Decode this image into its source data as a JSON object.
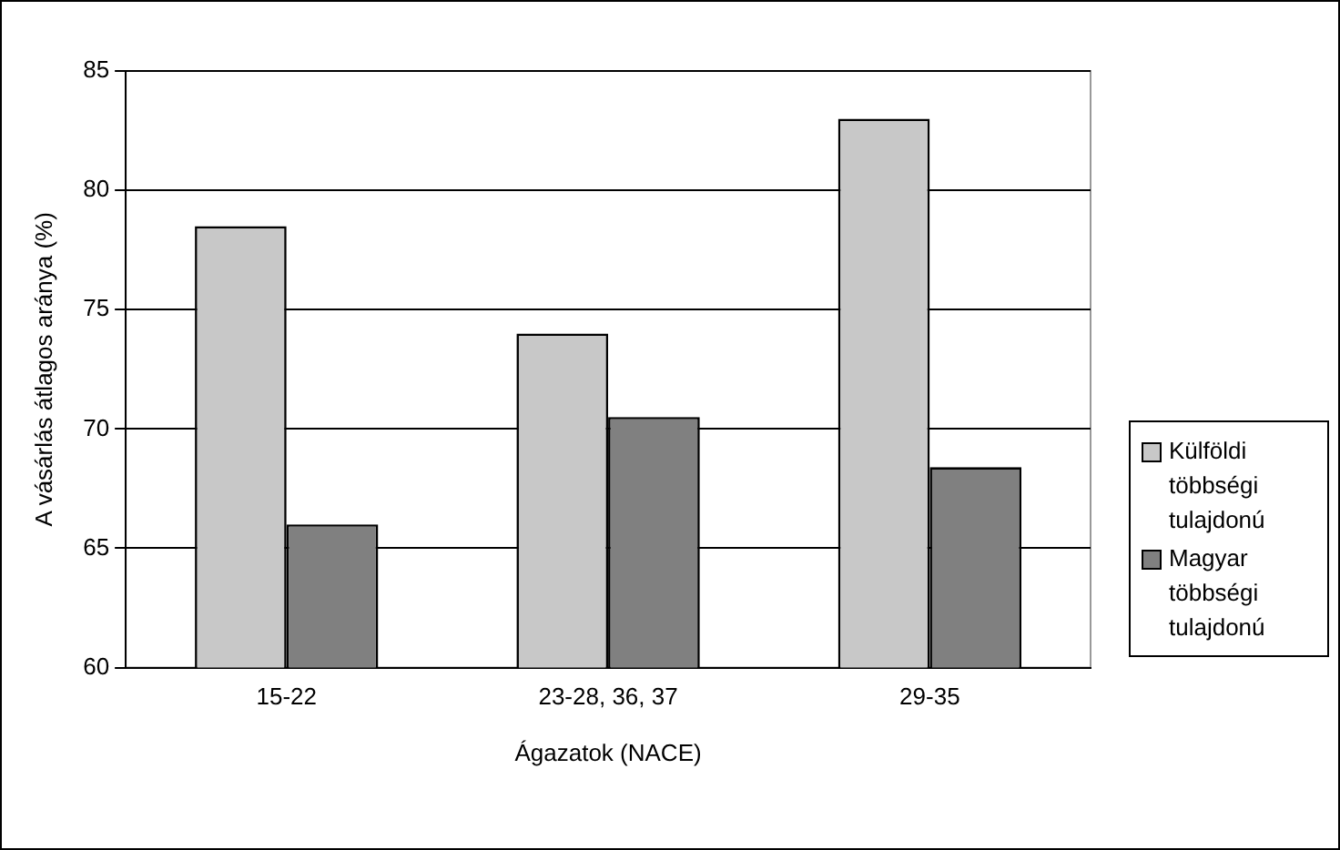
{
  "chart_data": {
    "type": "bar",
    "xlabel": "Ágazatok (NACE)",
    "ylabel": "A vásárlás átlagos aránya (%)",
    "categories": [
      "15-22",
      "23-28, 36, 37",
      "29-35"
    ],
    "series": [
      {
        "name": "Külföldi többségi tulajdonú",
        "color": "#c8c8c8",
        "values": [
          78.5,
          74,
          83
        ]
      },
      {
        "name": "Magyar többségi tulajdonú",
        "color": "#808080",
        "values": [
          66,
          70.5,
          68.4
        ]
      }
    ],
    "ylim": [
      60,
      85
    ],
    "yticks": [
      60,
      65,
      70,
      75,
      80,
      85
    ],
    "grid": "y",
    "legend": "right"
  }
}
